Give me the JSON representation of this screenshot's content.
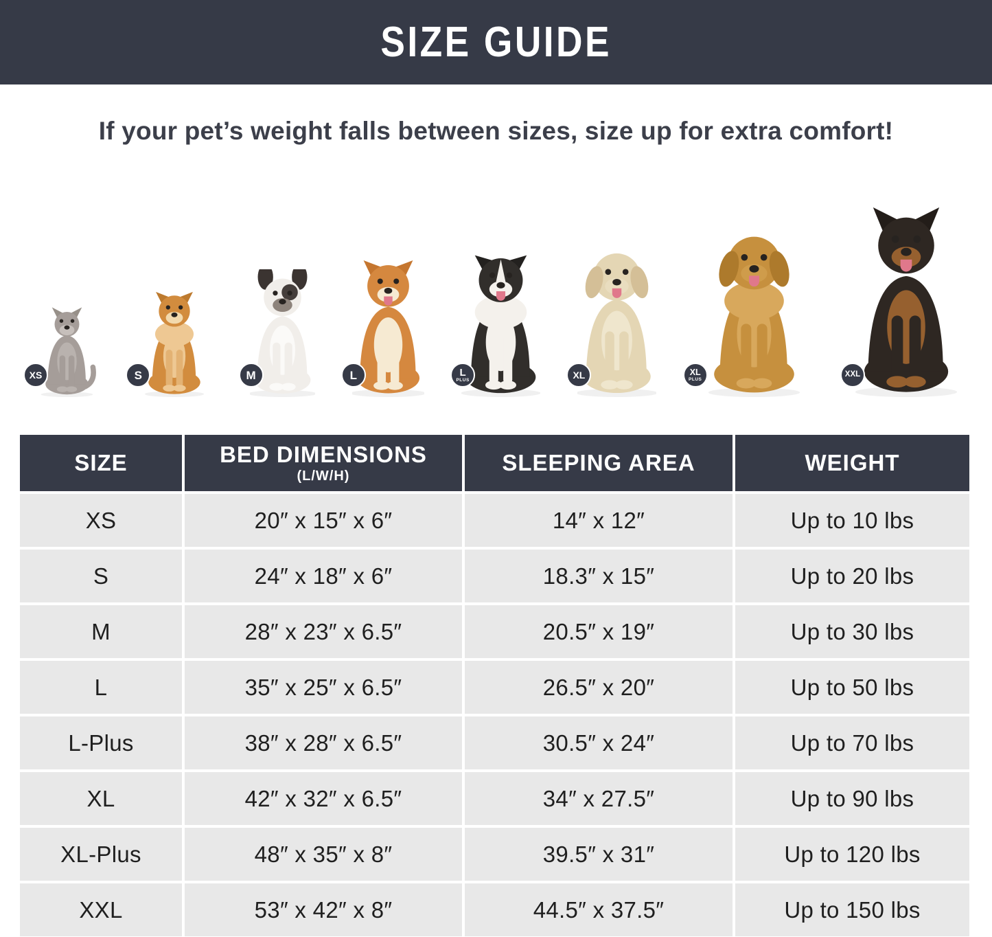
{
  "header": {
    "title": "SIZE GUIDE"
  },
  "subtitle": "If your pet’s weight falls between sizes, size up for extra comfort!",
  "colors": {
    "header_bg": "#363a47",
    "table_header_bg": "#363a47",
    "row_bg": "#e8e8e8",
    "title_text": "#ffffff",
    "subtitle_text": "#3c3f4a",
    "cell_text": "#1f1f1f",
    "badge_bg": "#363a47",
    "badge_text": "#ffffff"
  },
  "pets": [
    {
      "species": "cat",
      "badge": "XS",
      "badge_sub": "",
      "colors": {
        "body": "#a59d99",
        "chest": "#b9b2ae",
        "ear": "#979089",
        "muzzle": "#c6bfbb",
        "legs": "#a59d99",
        "paws": "#b9b2ae"
      }
    },
    {
      "species": "pomeranian",
      "badge": "S",
      "badge_sub": "",
      "colors": {
        "body": "#d28c3e",
        "chest": "#eec893",
        "ear": "#bd7a2e",
        "muzzle": "#f2d9ac",
        "legs": "#e3b273",
        "paws": "#eec893"
      }
    },
    {
      "species": "french-bulldog",
      "badge": "M",
      "badge_sub": "",
      "colors": {
        "body": "#f1eeea",
        "chest": "#fbfaf8",
        "ear": "#3b3431",
        "muzzle": "#8d837b",
        "legs": "#f1eeea",
        "paws": "#fbfaf8"
      }
    },
    {
      "species": "shiba-inu",
      "badge": "L",
      "badge_sub": "",
      "colors": {
        "body": "#d5883f",
        "chest": "#f6ead2",
        "ear": "#c5762f",
        "muzzle": "#f6ead2",
        "legs": "#f6ead2",
        "paws": "#f6ead2"
      }
    },
    {
      "species": "border-collie",
      "badge": "L",
      "badge_sub": "PLUS",
      "colors": {
        "body": "#312e2b",
        "chest": "#f4f1ec",
        "ear": "#23211f",
        "muzzle": "#f4f1ec",
        "legs": "#f4f1ec",
        "paws": "#f4f1ec"
      }
    },
    {
      "species": "labrador",
      "badge": "XL",
      "badge_sub": "",
      "colors": {
        "body": "#e4d6b4",
        "chest": "#efe6cd",
        "ear": "#d4bf97",
        "muzzle": "#e9ddbf",
        "legs": "#e4d6b4",
        "paws": "#efe6cd"
      }
    },
    {
      "species": "golden-retriever",
      "badge": "XL",
      "badge_sub": "PLUS",
      "colors": {
        "body": "#c6903e",
        "chest": "#d8a85c",
        "ear": "#ad7a2c",
        "muzzle": "#cf9c4b",
        "legs": "#c6903e",
        "paws": "#d8a85c"
      }
    },
    {
      "species": "doberman",
      "badge": "XXL",
      "badge_sub": "",
      "colors": {
        "body": "#2e2722",
        "chest": "#96602f",
        "ear": "#231d19",
        "muzzle": "#96602f",
        "legs": "#2e2722",
        "paws": "#96602f"
      }
    }
  ],
  "table": {
    "columns": [
      {
        "label": "SIZE",
        "sublabel": ""
      },
      {
        "label": "BED DIMENSIONS",
        "sublabel": "(L/W/H)"
      },
      {
        "label": "SLEEPING AREA",
        "sublabel": ""
      },
      {
        "label": "WEIGHT",
        "sublabel": ""
      }
    ],
    "rows": [
      {
        "size": "XS",
        "bed": "20″ x 15″ x 6″",
        "sleep": "14″ x 12″",
        "weight": "Up to 10 lbs"
      },
      {
        "size": "S",
        "bed": "24″ x 18″ x 6″",
        "sleep": "18.3″ x 15″",
        "weight": "Up to 20 lbs"
      },
      {
        "size": "M",
        "bed": "28″ x 23″ x 6.5″",
        "sleep": "20.5″ x 19″",
        "weight": "Up to 30 lbs"
      },
      {
        "size": "L",
        "bed": "35″ x 25″ x 6.5″",
        "sleep": "26.5″ x 20″",
        "weight": "Up to 50 lbs"
      },
      {
        "size": "L-Plus",
        "bed": "38″ x 28″ x 6.5″",
        "sleep": "30.5″ x 24″",
        "weight": "Up to 70 lbs"
      },
      {
        "size": "XL",
        "bed": "42″ x 32″ x 6.5″",
        "sleep": "34″ x 27.5″",
        "weight": "Up to 90 lbs"
      },
      {
        "size": "XL-Plus",
        "bed": "48″ x 35″ x 8″",
        "sleep": "39.5″ x 31″",
        "weight": "Up to 120 lbs"
      },
      {
        "size": "XXL",
        "bed": "53″ x 42″ x 8″",
        "sleep": "44.5″ x 37.5″",
        "weight": "Up to 150 lbs"
      }
    ]
  }
}
